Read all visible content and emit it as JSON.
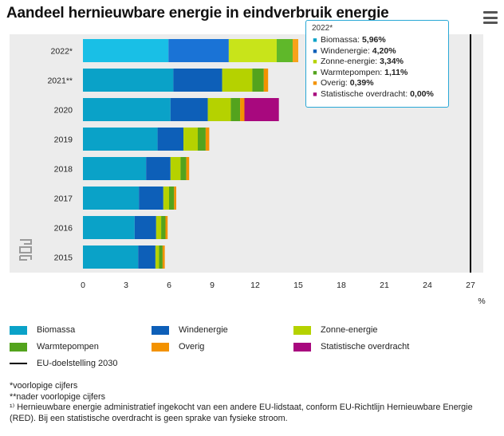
{
  "title": "Aandeel hernieuwbare energie in eindverbruik energie",
  "menu_icon": "hamburger-menu-icon",
  "chart_data": {
    "type": "bar",
    "orientation": "horizontal",
    "stacked": true,
    "categories": [
      "2022*",
      "2021**",
      "2020",
      "2019",
      "2018",
      "2017",
      "2016",
      "2015"
    ],
    "series": [
      {
        "name": "Biomassa",
        "color": "#0aa2c8",
        "values": [
          5.96,
          6.3,
          6.1,
          5.2,
          4.4,
          3.9,
          3.6,
          3.85
        ]
      },
      {
        "name": "Windenergie",
        "color": "#0d5fb8",
        "values": [
          4.2,
          3.4,
          2.6,
          1.8,
          1.7,
          1.7,
          1.5,
          1.2
        ]
      },
      {
        "name": "Zonne-energie",
        "color": "#b5d200",
        "values": [
          3.34,
          2.1,
          1.6,
          1.0,
          0.7,
          0.4,
          0.35,
          0.25
        ]
      },
      {
        "name": "Warmtepompen",
        "color": "#53a31d",
        "values": [
          1.11,
          0.8,
          0.65,
          0.55,
          0.4,
          0.35,
          0.3,
          0.25
        ]
      },
      {
        "name": "Overig",
        "color": "#f39200",
        "values": [
          0.39,
          0.3,
          0.3,
          0.25,
          0.2,
          0.15,
          0.15,
          0.15
        ]
      },
      {
        "name": "Statistische overdracht",
        "color": "#a8087e",
        "values": [
          0.0,
          0.0,
          2.4,
          0.0,
          0.0,
          0.0,
          0.0,
          0.0
        ]
      }
    ],
    "target_line": {
      "name": "EU-doelstelling 2030",
      "value": 27,
      "color": "#000000"
    },
    "xlim": [
      0,
      27
    ],
    "xticks": [
      0,
      3,
      6,
      9,
      12,
      15,
      18,
      21,
      24,
      27
    ],
    "xlabel": "%",
    "grid": false,
    "legend_position": "bottom",
    "highlight_category": "2022*"
  },
  "tooltip": {
    "header": "2022*",
    "rows": [
      {
        "label": "Biomassa",
        "value": "5,96%",
        "color": "#0aa2c8"
      },
      {
        "label": "Windenergie",
        "value": "4,20%",
        "color": "#0d5fb8"
      },
      {
        "label": "Zonne-energie",
        "value": "3,34%",
        "color": "#b5d200"
      },
      {
        "label": "Warmtepompen",
        "value": "1,11%",
        "color": "#53a31d"
      },
      {
        "label": "Overig",
        "value": "0,39%",
        "color": "#f39200"
      },
      {
        "label": "Statistische overdracht",
        "value": "0,00%",
        "color": "#a8087e"
      }
    ]
  },
  "legend": {
    "items": [
      {
        "label": "Biomassa",
        "color": "#0aa2c8"
      },
      {
        "label": "Windenergie",
        "color": "#0d5fb8"
      },
      {
        "label": "Zonne-energie",
        "color": "#b5d200"
      },
      {
        "label": "Warmtepompen",
        "color": "#53a31d"
      },
      {
        "label": "Overig",
        "color": "#f39200"
      },
      {
        "label": "Statistische overdracht",
        "color": "#a8087e"
      },
      {
        "label": "EU-doelstelling 2030",
        "color": "#000000"
      }
    ]
  },
  "footnotes": {
    "line1": "*voorlopige cijfers",
    "line2": "**nader voorlopige cijfers",
    "line3": "¹⁾ Hernieuwbare energie administratief ingekocht van een andere EU-lidstaat, conform EU-Richtlijn Hernieuwbare Energie (RED). Bij een statistische overdracht is geen sprake van fysieke stroom."
  },
  "watermark_logo": "cbs-logo"
}
